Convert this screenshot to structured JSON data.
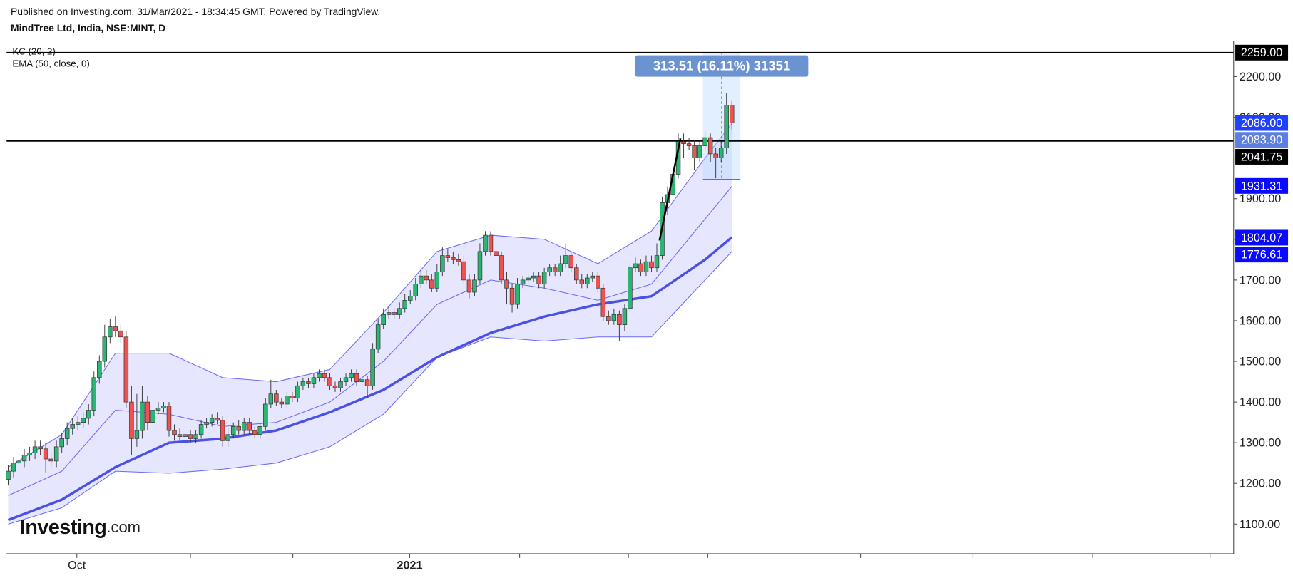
{
  "chart_data": {
    "type": "candlestick",
    "publisher": "Published on Investing.com, 31/Mar/2021 - 18:34:45 GMT, Powered by TradingView.",
    "title": "MindTree Ltd, India, NSE:MINT, D",
    "logo": {
      "brand": "Investing",
      "suffix": ".com"
    },
    "up_color": "#2bb673",
    "down_color": "#ef5350",
    "xlim": [
      -0.3,
      228.6
    ],
    "xticks": [
      {
        "value": 12.8,
        "label": "Oct"
      },
      34,
      53.1,
      {
        "value": 74.9,
        "label": "2021"
      },
      95.4,
      115.7,
      130.5,
      159,
      180,
      202.3,
      224.2
    ],
    "ylim": [
      1027,
      2287
    ],
    "yticks": [
      {
        "value": 1100,
        "label": "1100.00"
      },
      {
        "value": 1200,
        "label": "1200.00"
      },
      {
        "value": 1300,
        "label": "1300.00"
      },
      {
        "value": 1400,
        "label": "1400.00"
      },
      {
        "value": 1500,
        "label": "1500.00"
      },
      {
        "value": 1600,
        "label": "1600.00"
      },
      {
        "value": 1700,
        "label": "1700.00"
      },
      {
        "value": 1800,
        "label": "1800.00"
      },
      {
        "value": 1900,
        "label": "1900.00"
      },
      {
        "value": 2000,
        "label": "2000.00"
      },
      {
        "value": 2100,
        "label": "2100.00"
      },
      {
        "value": 2200,
        "label": "2200.00"
      }
    ],
    "open": [
      1210,
      1230,
      1250,
      1255,
      1270,
      1275,
      1290,
      1285,
      1260,
      1255,
      1290,
      1310,
      1335,
      1345,
      1350,
      1360,
      1380,
      1460,
      1500,
      1560,
      1585,
      1575,
      1560,
      1400,
      1310,
      1330,
      1400,
      1350,
      1380,
      1385,
      1390,
      1330,
      1320,
      1315,
      1320,
      1310,
      1320,
      1345,
      1350,
      1360,
      1355,
      1305,
      1320,
      1340,
      1330,
      1350,
      1330,
      1320,
      1340,
      1395,
      1420,
      1400,
      1395,
      1415,
      1410,
      1440,
      1450,
      1445,
      1460,
      1470,
      1460,
      1440,
      1435,
      1450,
      1460,
      1470,
      1450,
      1455,
      1440,
      1530,
      1590,
      1615,
      1620,
      1615,
      1630,
      1650,
      1660,
      1690,
      1710,
      1700,
      1680,
      1720,
      1760,
      1755,
      1750,
      1745,
      1700,
      1670,
      1700,
      1770,
      1810,
      1770,
      1760,
      1700,
      1680,
      1640,
      1690,
      1700,
      1705,
      1710,
      1690,
      1720,
      1730,
      1720,
      1740,
      1760,
      1730,
      1700,
      1690,
      1705,
      1710,
      1680,
      1610,
      1600,
      1615,
      1590,
      1630,
      1730,
      1740,
      1720,
      1745,
      1730,
      1760,
      1890,
      1910,
      1960,
      2040,
      2035,
      2030,
      2000,
      2030,
      2050,
      2010,
      2000,
      2025,
      2130
    ],
    "high": [
      1245,
      1265,
      1270,
      1285,
      1290,
      1305,
      1305,
      1300,
      1275,
      1305,
      1325,
      1350,
      1360,
      1365,
      1375,
      1395,
      1475,
      1515,
      1590,
      1605,
      1610,
      1590,
      1575,
      1440,
      1420,
      1440,
      1415,
      1395,
      1400,
      1400,
      1400,
      1345,
      1335,
      1335,
      1330,
      1330,
      1355,
      1360,
      1370,
      1375,
      1365,
      1335,
      1350,
      1355,
      1360,
      1360,
      1340,
      1350,
      1410,
      1455,
      1430,
      1410,
      1425,
      1425,
      1450,
      1460,
      1460,
      1470,
      1480,
      1480,
      1470,
      1450,
      1460,
      1470,
      1480,
      1480,
      1465,
      1465,
      1545,
      1605,
      1630,
      1635,
      1630,
      1645,
      1665,
      1675,
      1705,
      1725,
      1725,
      1715,
      1740,
      1780,
      1775,
      1770,
      1765,
      1760,
      1715,
      1715,
      1790,
      1820,
      1820,
      1785,
      1770,
      1720,
      1690,
      1705,
      1710,
      1715,
      1720,
      1720,
      1730,
      1740,
      1740,
      1760,
      1790,
      1770,
      1740,
      1715,
      1715,
      1720,
      1720,
      1690,
      1625,
      1630,
      1625,
      1640,
      1745,
      1755,
      1750,
      1760,
      1760,
      1790,
      1905,
      1930,
      1975,
      2060,
      2060,
      2050,
      2045,
      2045,
      2065,
      2060,
      2025,
      2040,
      2160,
      2140
    ],
    "low": [
      1195,
      1215,
      1235,
      1240,
      1255,
      1260,
      1270,
      1225,
      1240,
      1240,
      1275,
      1295,
      1320,
      1330,
      1335,
      1345,
      1365,
      1445,
      1485,
      1545,
      1560,
      1545,
      1385,
      1270,
      1290,
      1310,
      1330,
      1340,
      1370,
      1375,
      1315,
      1305,
      1305,
      1305,
      1300,
      1300,
      1310,
      1335,
      1340,
      1345,
      1290,
      1290,
      1310,
      1320,
      1320,
      1320,
      1310,
      1310,
      1330,
      1385,
      1390,
      1385,
      1385,
      1400,
      1400,
      1430,
      1435,
      1435,
      1450,
      1450,
      1430,
      1425,
      1425,
      1440,
      1450,
      1440,
      1440,
      1410,
      1430,
      1520,
      1580,
      1605,
      1605,
      1605,
      1620,
      1640,
      1650,
      1680,
      1690,
      1670,
      1670,
      1710,
      1745,
      1740,
      1735,
      1690,
      1655,
      1660,
      1690,
      1760,
      1760,
      1750,
      1690,
      1640,
      1620,
      1630,
      1680,
      1690,
      1695,
      1680,
      1680,
      1710,
      1710,
      1710,
      1730,
      1720,
      1690,
      1680,
      1680,
      1695,
      1670,
      1600,
      1590,
      1590,
      1550,
      1575,
      1620,
      1720,
      1710,
      1710,
      1720,
      1720,
      1750,
      1860,
      1900,
      1950,
      2000,
      2020,
      1970,
      1990,
      2020,
      1990,
      1950,
      1990,
      2010,
      2070
    ],
    "close": [
      1230,
      1250,
      1255,
      1270,
      1275,
      1290,
      1285,
      1260,
      1255,
      1290,
      1310,
      1335,
      1345,
      1350,
      1360,
      1380,
      1460,
      1500,
      1560,
      1585,
      1575,
      1560,
      1400,
      1310,
      1330,
      1400,
      1350,
      1380,
      1385,
      1390,
      1330,
      1320,
      1315,
      1320,
      1310,
      1320,
      1345,
      1350,
      1360,
      1355,
      1305,
      1320,
      1340,
      1330,
      1350,
      1330,
      1320,
      1340,
      1395,
      1420,
      1400,
      1395,
      1415,
      1410,
      1440,
      1450,
      1445,
      1460,
      1470,
      1460,
      1440,
      1435,
      1450,
      1460,
      1470,
      1450,
      1455,
      1440,
      1530,
      1590,
      1615,
      1620,
      1615,
      1630,
      1650,
      1660,
      1690,
      1710,
      1700,
      1680,
      1720,
      1760,
      1755,
      1750,
      1745,
      1700,
      1670,
      1700,
      1770,
      1810,
      1770,
      1760,
      1700,
      1680,
      1640,
      1690,
      1700,
      1705,
      1710,
      1690,
      1720,
      1730,
      1720,
      1740,
      1760,
      1730,
      1700,
      1690,
      1705,
      1710,
      1680,
      1610,
      1600,
      1615,
      1590,
      1630,
      1730,
      1740,
      1720,
      1745,
      1730,
      1760,
      1890,
      1910,
      1960,
      2040,
      2035,
      2030,
      2000,
      2030,
      2050,
      2010,
      2000,
      2025,
      2130,
      2086
    ],
    "kc": {
      "name": "KC (20, 2)",
      "color": "#6a6aff",
      "x": [
        0,
        10,
        20,
        30,
        40,
        50,
        60,
        70,
        80,
        90,
        100,
        110,
        120,
        130,
        135
      ],
      "upper": [
        1240,
        1320,
        1520,
        1520,
        1460,
        1450,
        1480,
        1620,
        1770,
        1810,
        1800,
        1740,
        1820,
        2000,
        2085
      ],
      "middle": [
        1170,
        1230,
        1380,
        1370,
        1340,
        1350,
        1400,
        1500,
        1640,
        1700,
        1680,
        1650,
        1690,
        1850,
        1930
      ],
      "lower": [
        1100,
        1140,
        1230,
        1225,
        1235,
        1250,
        1290,
        1370,
        1510,
        1560,
        1550,
        1560,
        1560,
        1700,
        1770
      ]
    },
    "ema": {
      "name": "EMA (50, close, 0)",
      "color": "#4b50e6",
      "x": [
        0,
        10,
        20,
        30,
        40,
        50,
        60,
        70,
        80,
        90,
        100,
        110,
        120,
        130,
        135
      ],
      "values": [
        1110,
        1160,
        1240,
        1300,
        1310,
        1330,
        1375,
        1430,
        1510,
        1570,
        1610,
        1640,
        1660,
        1750,
        1805
      ]
    },
    "trendline": {
      "x": [
        121.5,
        125.4
      ],
      "y": [
        1797,
        2048
      ]
    },
    "measure": {
      "label": "313.51 (16.11%) 31351",
      "from": 1947,
      "to": 2260.5,
      "x_start": 129.6,
      "x_end": 136.6
    },
    "price_labels": [
      {
        "value": 2259,
        "label": "2259.00",
        "color": "#000000",
        "line": "solid"
      },
      {
        "value": 2086,
        "label": "2086.00",
        "color": "#1e40ff",
        "line": "dotted"
      },
      {
        "value": 2083.9,
        "label": "2083.90",
        "color": "#5c7fe0"
      },
      {
        "value": 2041.75,
        "label": "2041.75",
        "color": "#000000",
        "line": "solid"
      },
      {
        "value": 1931.31,
        "label": "1931.31",
        "color": "#0a0aff"
      },
      {
        "value": 1804.07,
        "label": "1804.07",
        "color": "#0a0aff"
      },
      {
        "value": 1776.61,
        "label": "1776.61",
        "color": "#0a0aff"
      }
    ]
  }
}
